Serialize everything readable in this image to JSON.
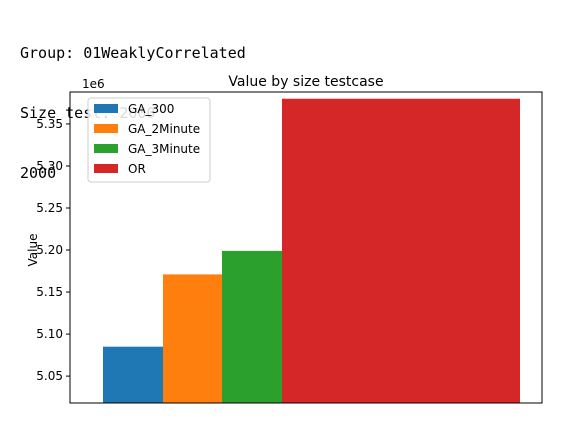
{
  "output": {
    "lines": [
      "Group: 01WeaklyCorrelated",
      "Size test: 2000",
      "2000"
    ]
  },
  "chart_data": {
    "type": "bar",
    "title": "Value by size testcase",
    "xlabel": "",
    "ylabel": "Value",
    "offset_label": "1e6",
    "ylim": [
      5.018,
      5.388
    ],
    "yticks": [
      "5.05",
      "5.10",
      "5.15",
      "5.20",
      "5.25",
      "5.30",
      "5.35"
    ],
    "ytick_values": [
      5.05,
      5.1,
      5.15,
      5.2,
      5.25,
      5.3,
      5.35
    ],
    "grid": false,
    "legend_position": "upper-left",
    "series": [
      {
        "name": "GA_300",
        "value": 5.085,
        "color": "#1f77b4"
      },
      {
        "name": "GA_2Minute",
        "value": 5.171,
        "color": "#ff7f0e"
      },
      {
        "name": "GA_3Minute",
        "value": 5.199,
        "color": "#2ca02c"
      },
      {
        "name": "OR",
        "value": 5.38,
        "color": "#d62728"
      }
    ]
  }
}
